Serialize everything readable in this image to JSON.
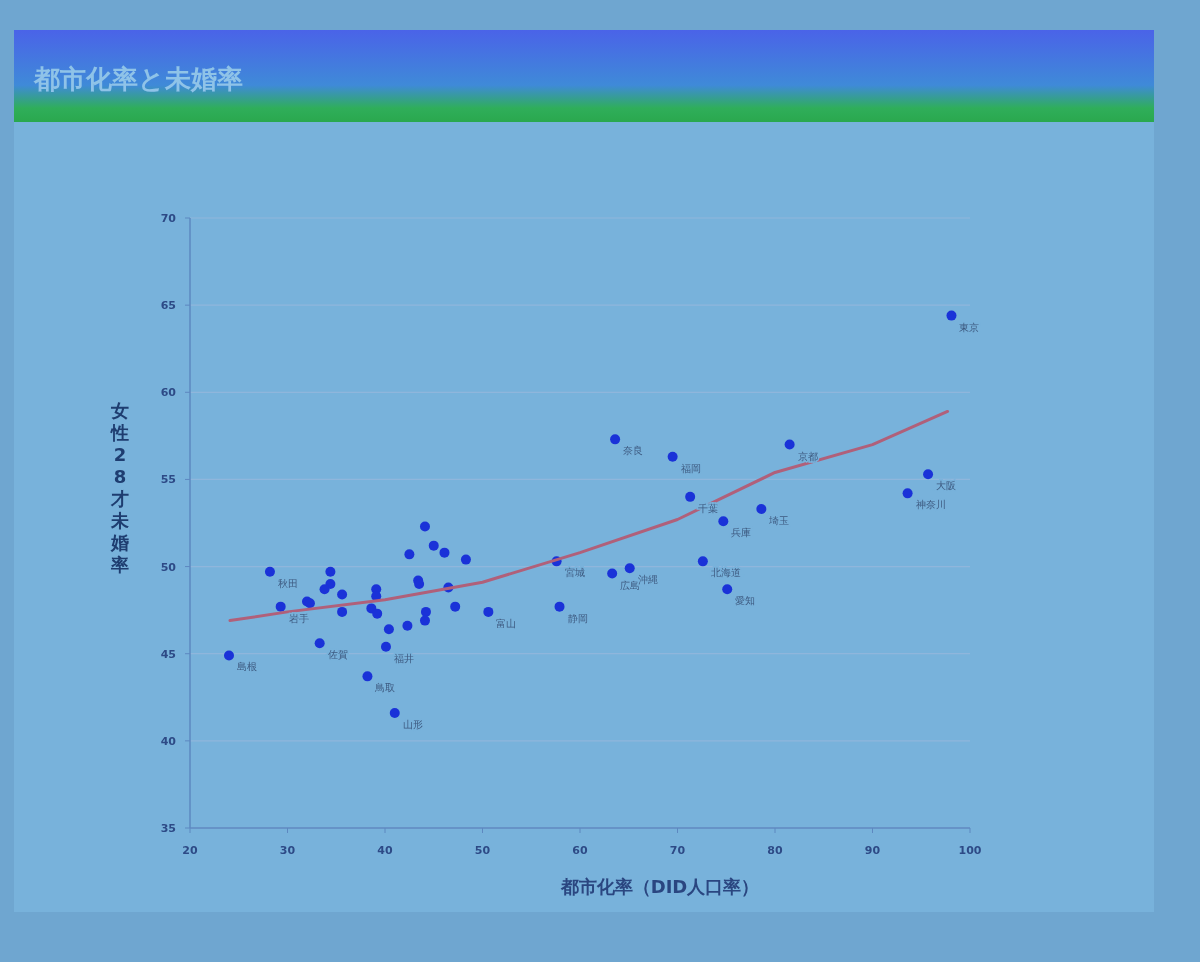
{
  "chart_data": {
    "type": "scatter",
    "title": "都市化率と未婚率",
    "xlabel": "都市化率（DID人口率）",
    "ylabel": "女性28才未婚率",
    "xlim": [
      20,
      100
    ],
    "xticks": [
      20,
      30,
      40,
      50,
      60,
      70,
      80,
      90,
      100
    ],
    "ylim": [
      35,
      70
    ],
    "yticks": [
      35,
      40,
      45,
      50,
      55,
      60,
      65,
      70
    ],
    "grid": "y",
    "series": [
      {
        "type": "scatter",
        "marker": "circle",
        "color": "#1a32d8",
        "x": [
          98.1,
          95.7,
          93.6,
          81.5,
          78.6,
          74.7,
          71.3,
          69.5,
          63.6,
          72.6,
          75.1,
          63.3,
          65.1,
          57.6,
          57.9,
          50.6,
          48.3,
          44.1,
          45.0,
          46.1,
          42.5,
          43.4,
          43.5,
          46.5,
          47.2,
          44.2,
          44.1,
          42.3,
          40.4,
          40.1,
          39.1,
          39.1,
          38.6,
          39.2,
          38.2,
          41.0,
          35.6,
          35.6,
          34.4,
          34.4,
          33.8,
          32.0,
          32.3,
          29.3,
          28.2,
          33.3,
          24.0
        ],
        "values": [
          64.4,
          55.3,
          54.2,
          57.0,
          53.3,
          52.6,
          54.0,
          56.3,
          57.3,
          50.3,
          48.7,
          49.6,
          49.9,
          50.3,
          47.7,
          47.4,
          50.4,
          52.3,
          51.2,
          50.8,
          50.7,
          49.2,
          49.0,
          48.8,
          47.7,
          47.4,
          46.9,
          46.6,
          46.4,
          45.4,
          48.7,
          48.3,
          47.6,
          47.3,
          43.7,
          41.6,
          48.4,
          47.4,
          49.7,
          49.0,
          48.7,
          48.0,
          47.9,
          47.7,
          49.7,
          45.6,
          44.9
        ]
      },
      {
        "type": "line",
        "color": "#b0607a",
        "x": [
          24.1,
          30,
          40,
          50,
          60,
          70,
          80,
          90,
          97.7
        ],
        "values": [
          46.9,
          47.4,
          48.1,
          49.1,
          50.8,
          52.7,
          55.4,
          57.0,
          58.9
        ]
      }
    ],
    "annotations": [
      {
        "text": "東京",
        "x": 98.1,
        "y": 64.4
      },
      {
        "text": "大阪",
        "x": 95.7,
        "y": 55.3
      },
      {
        "text": "神奈川",
        "x": 93.6,
        "y": 54.2
      },
      {
        "text": "京都",
        "x": 81.5,
        "y": 57.0
      },
      {
        "text": "埼玉",
        "x": 78.6,
        "y": 53.3
      },
      {
        "text": "兵庫",
        "x": 74.7,
        "y": 52.6
      },
      {
        "text": "千葉",
        "x": 71.3,
        "y": 54.0
      },
      {
        "text": "福岡",
        "x": 69.5,
        "y": 56.3
      },
      {
        "text": "奈良",
        "x": 63.6,
        "y": 57.3
      },
      {
        "text": "北海道",
        "x": 72.6,
        "y": 50.3
      },
      {
        "text": "愛知",
        "x": 75.1,
        "y": 48.7
      },
      {
        "text": "広島",
        "x": 63.3,
        "y": 49.6
      },
      {
        "text": "沖縄",
        "x": 65.1,
        "y": 49.9
      },
      {
        "text": "宮城",
        "x": 57.6,
        "y": 50.3
      },
      {
        "text": "静岡",
        "x": 57.9,
        "y": 47.7
      },
      {
        "text": "富山",
        "x": 50.6,
        "y": 47.4
      },
      {
        "text": "山形",
        "x": 41.0,
        "y": 41.6
      },
      {
        "text": "鳥取",
        "x": 38.2,
        "y": 43.7
      },
      {
        "text": "福井",
        "x": 40.1,
        "y": 45.4
      },
      {
        "text": "佐賀",
        "x": 33.3,
        "y": 45.6
      },
      {
        "text": "島根",
        "x": 24.0,
        "y": 44.9
      },
      {
        "text": "岩手",
        "x": 29.3,
        "y": 47.7
      },
      {
        "text": "秋田",
        "x": 28.2,
        "y": 49.7
      }
    ]
  }
}
